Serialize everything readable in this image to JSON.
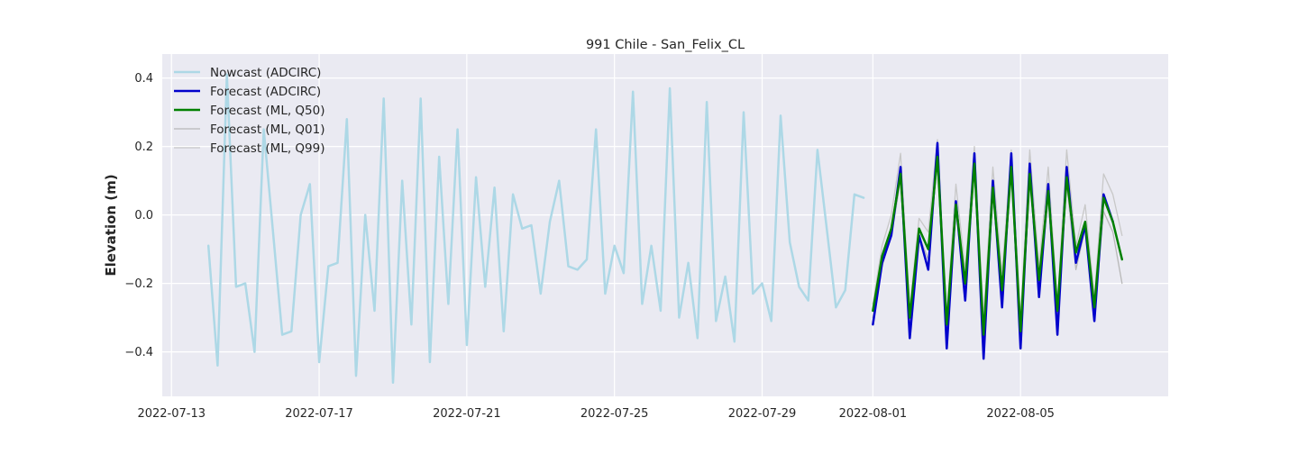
{
  "chart_data": {
    "type": "line",
    "title": "991 Chile - San_Felix_CL",
    "xlabel": "",
    "ylabel": "Elevation (m)",
    "xlim": [
      "2022-07-12T18:00",
      "2022-08-09T00:00"
    ],
    "ylim": [
      -0.53,
      0.47
    ],
    "grid": true,
    "legend_position": "upper-left",
    "x_ticks": [
      "2022-07-13",
      "2022-07-17",
      "2022-07-21",
      "2022-07-25",
      "2022-07-29",
      "2022-08-01",
      "2022-08-05"
    ],
    "y_ticks": [
      -0.4,
      -0.2,
      0.0,
      0.2,
      0.4
    ],
    "y_tick_labels": [
      "−0.4",
      "−0.2",
      "0.0",
      "0.2",
      "0.4"
    ],
    "series": [
      {
        "name": "Nowcast (ADCIRC)",
        "color": "#add8e6",
        "width": 2.5,
        "x": [
          "2022-07-14T00:00",
          "2022-07-14T06:00",
          "2022-07-14T12:00",
          "2022-07-14T18:00",
          "2022-07-15T00:00",
          "2022-07-15T06:00",
          "2022-07-15T12:00",
          "2022-07-15T18:00",
          "2022-07-16T00:00",
          "2022-07-16T06:00",
          "2022-07-16T12:00",
          "2022-07-16T18:00",
          "2022-07-17T00:00",
          "2022-07-17T06:00",
          "2022-07-17T12:00",
          "2022-07-17T18:00",
          "2022-07-18T00:00",
          "2022-07-18T06:00",
          "2022-07-18T12:00",
          "2022-07-18T18:00",
          "2022-07-19T00:00",
          "2022-07-19T06:00",
          "2022-07-19T12:00",
          "2022-07-19T18:00",
          "2022-07-20T00:00",
          "2022-07-20T06:00",
          "2022-07-20T12:00",
          "2022-07-20T18:00",
          "2022-07-21T00:00",
          "2022-07-21T06:00",
          "2022-07-21T12:00",
          "2022-07-21T18:00",
          "2022-07-22T00:00",
          "2022-07-22T06:00",
          "2022-07-22T12:00",
          "2022-07-22T18:00",
          "2022-07-23T00:00",
          "2022-07-23T06:00",
          "2022-07-23T12:00",
          "2022-07-23T18:00",
          "2022-07-24T00:00",
          "2022-07-24T06:00",
          "2022-07-24T12:00",
          "2022-07-24T18:00",
          "2022-07-25T00:00",
          "2022-07-25T06:00",
          "2022-07-25T12:00",
          "2022-07-25T18:00",
          "2022-07-26T00:00",
          "2022-07-26T06:00",
          "2022-07-26T12:00",
          "2022-07-26T18:00",
          "2022-07-27T00:00",
          "2022-07-27T06:00",
          "2022-07-27T12:00",
          "2022-07-27T18:00",
          "2022-07-28T00:00",
          "2022-07-28T06:00",
          "2022-07-28T12:00",
          "2022-07-28T18:00",
          "2022-07-29T00:00",
          "2022-07-29T06:00",
          "2022-07-29T12:00",
          "2022-07-29T18:00",
          "2022-07-30T00:00",
          "2022-07-30T06:00",
          "2022-07-30T12:00",
          "2022-07-30T18:00",
          "2022-07-31T00:00",
          "2022-07-31T06:00",
          "2022-07-31T12:00",
          "2022-07-31T18:00"
        ],
        "values": [
          -0.09,
          -0.44,
          0.41,
          -0.21,
          -0.2,
          -0.4,
          0.25,
          -0.05,
          -0.35,
          -0.34,
          0.0,
          0.09,
          -0.43,
          -0.15,
          -0.14,
          0.28,
          -0.47,
          0.0,
          -0.28,
          0.34,
          -0.49,
          0.1,
          -0.32,
          0.34,
          -0.43,
          0.17,
          -0.26,
          0.25,
          -0.38,
          0.11,
          -0.21,
          0.08,
          -0.34,
          0.06,
          -0.04,
          -0.03,
          -0.23,
          -0.02,
          0.1,
          -0.15,
          -0.16,
          -0.13,
          0.25,
          -0.23,
          -0.09,
          -0.17,
          0.36,
          -0.26,
          -0.09,
          -0.28,
          0.37,
          -0.3,
          -0.14,
          -0.36,
          0.33,
          -0.31,
          -0.18,
          -0.37,
          0.3,
          -0.23,
          -0.2,
          -0.31,
          0.29,
          -0.08,
          -0.21,
          -0.25,
          0.19,
          -0.04,
          -0.27,
          -0.22,
          0.06,
          0.05
        ]
      },
      {
        "name": "Forecast (ADCIRC)",
        "color": "#0000cc",
        "width": 2.5,
        "x": [
          "2022-08-01T00:00",
          "2022-08-01T06:00",
          "2022-08-01T12:00",
          "2022-08-01T18:00",
          "2022-08-02T00:00",
          "2022-08-02T06:00",
          "2022-08-02T12:00",
          "2022-08-02T18:00",
          "2022-08-03T00:00",
          "2022-08-03T06:00",
          "2022-08-03T12:00",
          "2022-08-03T18:00",
          "2022-08-04T00:00",
          "2022-08-04T06:00",
          "2022-08-04T12:00",
          "2022-08-04T18:00",
          "2022-08-05T00:00",
          "2022-08-05T06:00",
          "2022-08-05T12:00",
          "2022-08-05T18:00",
          "2022-08-06T00:00",
          "2022-08-06T06:00",
          "2022-08-06T12:00",
          "2022-08-06T18:00",
          "2022-08-07T00:00",
          "2022-08-07T06:00",
          "2022-08-07T12:00",
          "2022-08-07T18:00",
          "2022-08-08T00:00",
          "2022-08-08T06:00",
          "2022-08-08T12:00"
        ],
        "values": [
          -0.32,
          -0.14,
          -0.06,
          0.14,
          -0.36,
          -0.06,
          -0.16,
          0.21,
          -0.39,
          0.04,
          -0.25,
          0.18,
          -0.42,
          0.1,
          -0.27,
          0.18,
          -0.39,
          0.15,
          -0.24,
          0.09,
          -0.35,
          0.14,
          -0.14,
          -0.03,
          -0.31,
          0.06,
          -0.02,
          null,
          null,
          null,
          null
        ]
      },
      {
        "name": "Forecast (ML, Q50)",
        "color": "#008000",
        "width": 2.5,
        "x": [
          "2022-08-01T00:00",
          "2022-08-01T06:00",
          "2022-08-01T12:00",
          "2022-08-01T18:00",
          "2022-08-02T00:00",
          "2022-08-02T06:00",
          "2022-08-02T12:00",
          "2022-08-02T18:00",
          "2022-08-03T00:00",
          "2022-08-03T06:00",
          "2022-08-03T12:00",
          "2022-08-03T18:00",
          "2022-08-04T00:00",
          "2022-08-04T06:00",
          "2022-08-04T12:00",
          "2022-08-04T18:00",
          "2022-08-05T00:00",
          "2022-08-05T06:00",
          "2022-08-05T12:00",
          "2022-08-05T18:00",
          "2022-08-06T00:00",
          "2022-08-06T06:00",
          "2022-08-06T12:00",
          "2022-08-06T18:00",
          "2022-08-07T00:00",
          "2022-08-07T06:00",
          "2022-08-07T12:00",
          "2022-08-07T18:00",
          "2022-08-08T00:00",
          "2022-08-08T06:00",
          "2022-08-08T12:00"
        ],
        "values": [
          -0.28,
          -0.12,
          -0.04,
          0.12,
          -0.3,
          -0.04,
          -0.1,
          0.17,
          -0.32,
          0.03,
          -0.2,
          0.15,
          -0.35,
          0.08,
          -0.22,
          0.14,
          -0.34,
          0.12,
          -0.19,
          0.07,
          -0.28,
          0.11,
          -0.11,
          -0.02,
          -0.27,
          0.05,
          -0.02,
          -0.13,
          null,
          null,
          null
        ]
      },
      {
        "name": "Forecast (ML, Q01)",
        "color": "#b8b8b8",
        "width": 1.3,
        "x": [
          "2022-08-01T00:00",
          "2022-08-01T06:00",
          "2022-08-01T12:00",
          "2022-08-01T18:00",
          "2022-08-02T00:00",
          "2022-08-02T06:00",
          "2022-08-02T12:00",
          "2022-08-02T18:00",
          "2022-08-03T00:00",
          "2022-08-03T06:00",
          "2022-08-03T12:00",
          "2022-08-03T18:00",
          "2022-08-04T00:00",
          "2022-08-04T06:00",
          "2022-08-04T12:00",
          "2022-08-04T18:00",
          "2022-08-05T00:00",
          "2022-08-05T06:00",
          "2022-08-05T12:00",
          "2022-08-05T18:00",
          "2022-08-06T00:00",
          "2022-08-06T06:00",
          "2022-08-06T12:00",
          "2022-08-06T18:00",
          "2022-08-07T00:00",
          "2022-08-07T06:00",
          "2022-08-07T12:00",
          "2022-08-07T18:00"
        ],
        "values": [
          -0.3,
          -0.15,
          -0.06,
          0.1,
          -0.33,
          -0.06,
          -0.13,
          0.16,
          -0.36,
          0.01,
          -0.23,
          0.14,
          -0.38,
          0.06,
          -0.25,
          0.13,
          -0.37,
          0.1,
          -0.22,
          0.05,
          -0.31,
          0.09,
          -0.16,
          -0.04,
          -0.3,
          0.01,
          -0.05,
          -0.2
        ]
      },
      {
        "name": "Forecast (ML, Q99)",
        "color": "#c8c8c8",
        "width": 1.3,
        "x": [
          "2022-08-01T00:00",
          "2022-08-01T06:00",
          "2022-08-01T12:00",
          "2022-08-01T18:00",
          "2022-08-02T00:00",
          "2022-08-02T06:00",
          "2022-08-02T12:00",
          "2022-08-02T18:00",
          "2022-08-03T00:00",
          "2022-08-03T06:00",
          "2022-08-03T12:00",
          "2022-08-03T18:00",
          "2022-08-04T00:00",
          "2022-08-04T06:00",
          "2022-08-04T12:00",
          "2022-08-04T18:00",
          "2022-08-05T00:00",
          "2022-08-05T06:00",
          "2022-08-05T12:00",
          "2022-08-05T18:00",
          "2022-08-06T00:00",
          "2022-08-06T06:00",
          "2022-08-06T12:00",
          "2022-08-06T18:00",
          "2022-08-07T00:00",
          "2022-08-07T06:00",
          "2022-08-07T12:00",
          "2022-08-07T18:00"
        ],
        "values": [
          -0.26,
          -0.09,
          0.0,
          0.18,
          -0.27,
          -0.01,
          -0.05,
          0.22,
          -0.29,
          0.09,
          -0.16,
          0.2,
          -0.3,
          0.14,
          -0.17,
          0.19,
          -0.3,
          0.19,
          -0.15,
          0.14,
          -0.26,
          0.19,
          -0.09,
          0.03,
          -0.24,
          0.12,
          0.06,
          -0.06
        ]
      }
    ]
  }
}
